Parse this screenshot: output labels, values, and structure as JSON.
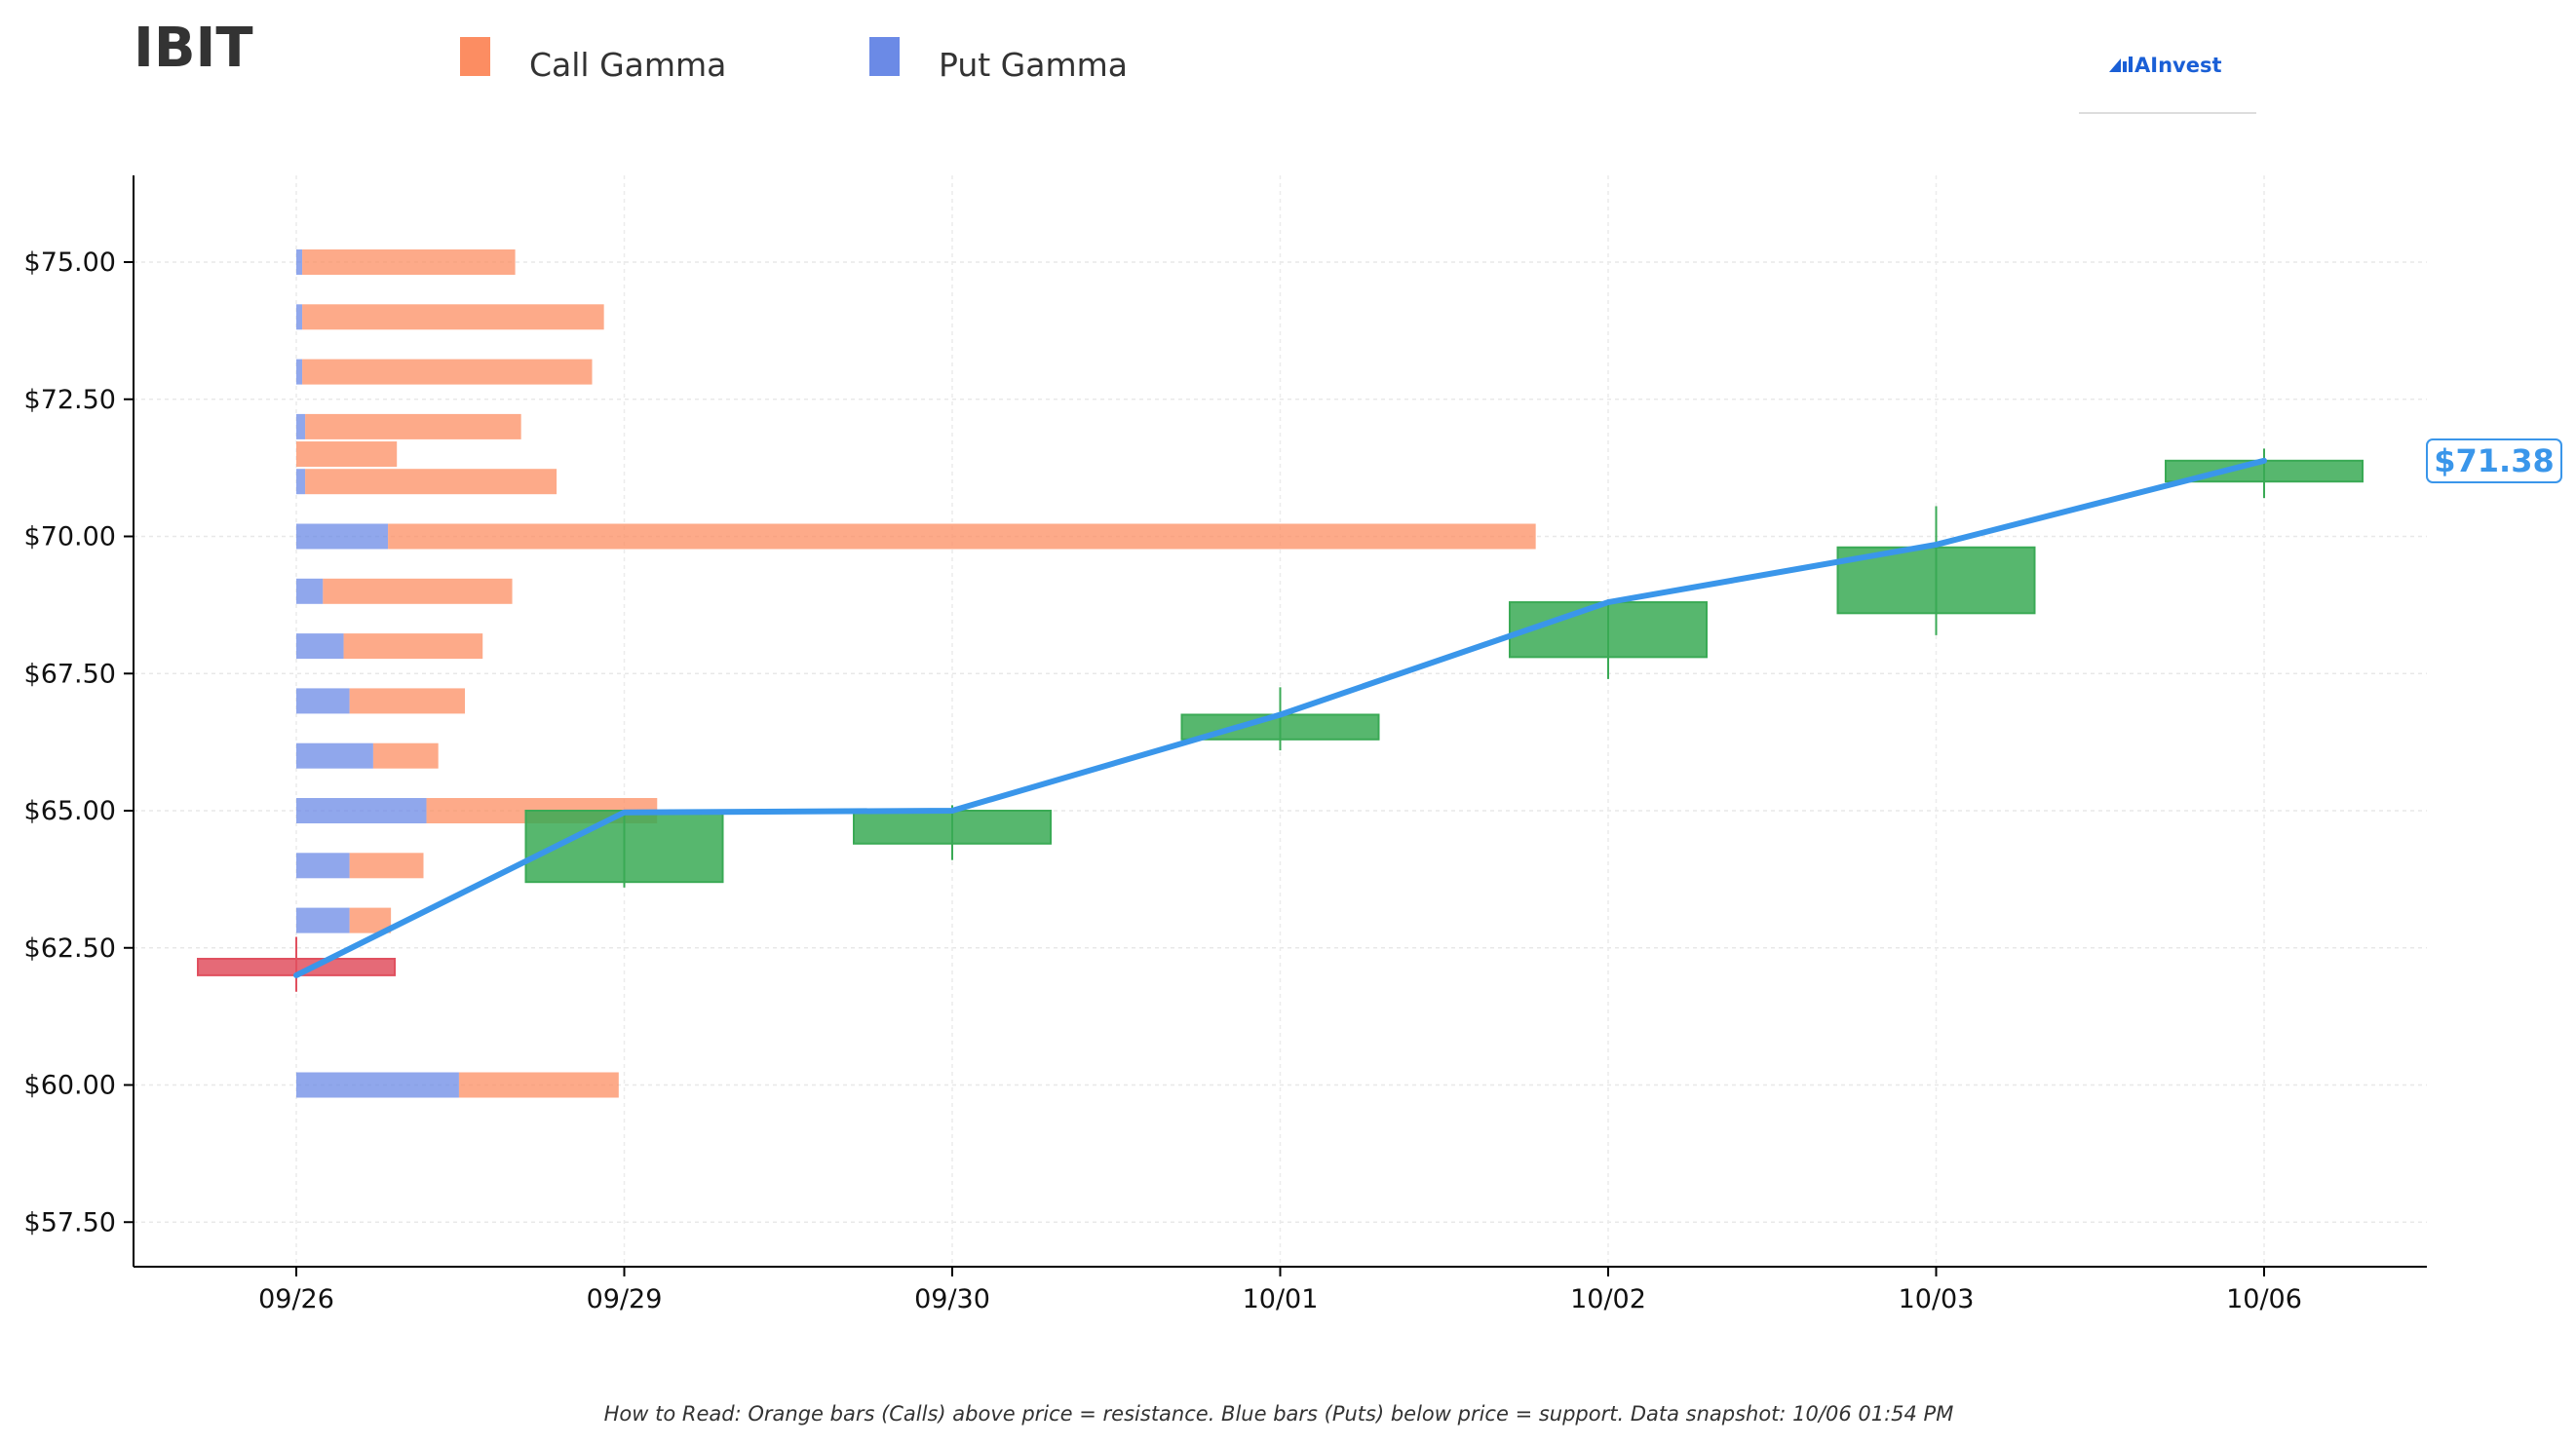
{
  "chart_data": {
    "type": "bar",
    "title": "IBIT",
    "legend": [
      {
        "name": "Call Gamma",
        "color": "#fc8d62"
      },
      {
        "name": "Put Gamma",
        "color": "#6b8ae6"
      }
    ],
    "legend_position": "top",
    "categories": [
      "09/26",
      "09/29",
      "09/30",
      "10/01",
      "10/02",
      "10/03",
      "10/06"
    ],
    "ylim": [
      56.75,
      75.95
    ],
    "y_ticks": [
      "$57.50",
      "$60.00",
      "$62.50",
      "$65.00",
      "$67.50",
      "$70.00",
      "$72.50",
      "$75.00"
    ],
    "grid": true,
    "gamma_units": "relative",
    "gamma_bars": [
      {
        "strike": 75.0,
        "put": 0.1,
        "call": 3.6
      },
      {
        "strike": 74.0,
        "put": 0.1,
        "call": 5.1
      },
      {
        "strike": 73.0,
        "put": 0.1,
        "call": 4.9
      },
      {
        "strike": 72.0,
        "put": 0.15,
        "call": 3.65
      },
      {
        "strike": 71.5,
        "put": 0.0,
        "call": 1.7
      },
      {
        "strike": 71.0,
        "put": 0.15,
        "call": 4.25
      },
      {
        "strike": 70.0,
        "put": 1.55,
        "call": 19.4
      },
      {
        "strike": 69.0,
        "put": 0.45,
        "call": 3.2
      },
      {
        "strike": 68.0,
        "put": 0.8,
        "call": 2.35
      },
      {
        "strike": 67.0,
        "put": 0.9,
        "call": 1.95
      },
      {
        "strike": 66.0,
        "put": 1.3,
        "call": 1.1
      },
      {
        "strike": 65.0,
        "put": 2.2,
        "call": 3.9
      },
      {
        "strike": 64.0,
        "put": 0.9,
        "call": 1.25
      },
      {
        "strike": 63.0,
        "put": 0.9,
        "call": 0.7
      },
      {
        "strike": 60.0,
        "put": 2.75,
        "call": 2.7
      }
    ],
    "candles": [
      {
        "date": "09/26",
        "open": 62.3,
        "close": 62.0,
        "high": 62.7,
        "low": 61.7,
        "color": "#e0505f"
      },
      {
        "date": "09/29",
        "open": 63.7,
        "close": 65.0,
        "high": 65.0,
        "low": 63.6,
        "color": "#3aaa55"
      },
      {
        "date": "09/30",
        "open": 64.4,
        "close": 65.0,
        "high": 65.1,
        "low": 64.1,
        "color": "#3aaa55"
      },
      {
        "date": "10/01",
        "open": 66.3,
        "close": 66.75,
        "high": 67.25,
        "low": 66.1,
        "color": "#3aaa55"
      },
      {
        "date": "10/02",
        "open": 67.8,
        "close": 68.8,
        "high": 68.85,
        "low": 67.4,
        "color": "#3aaa55"
      },
      {
        "date": "10/03",
        "open": 68.6,
        "close": 69.8,
        "high": 70.55,
        "low": 68.2,
        "color": "#3aaa55"
      },
      {
        "date": "10/06",
        "open": 71.0,
        "close": 71.38,
        "high": 71.6,
        "low": 70.7,
        "color": "#3aaa55"
      }
    ],
    "price_line": {
      "values": [
        62.0,
        64.97,
        65.0,
        66.75,
        68.8,
        69.85,
        71.38
      ],
      "color": "#3a96ea"
    },
    "last_price_label": "$71.38",
    "footnote": "How to Read: Orange bars (Calls) above price = resistance. Blue bars (Puts) below price = support. Data snapshot: 10/06 01:54 PM"
  },
  "logo": {
    "text": "AInvest"
  },
  "colors": {
    "call": "#fc8d62",
    "put": "#6b8ae6",
    "up": "#3aaa55",
    "down": "#e0505f",
    "line": "#3a96ea"
  }
}
